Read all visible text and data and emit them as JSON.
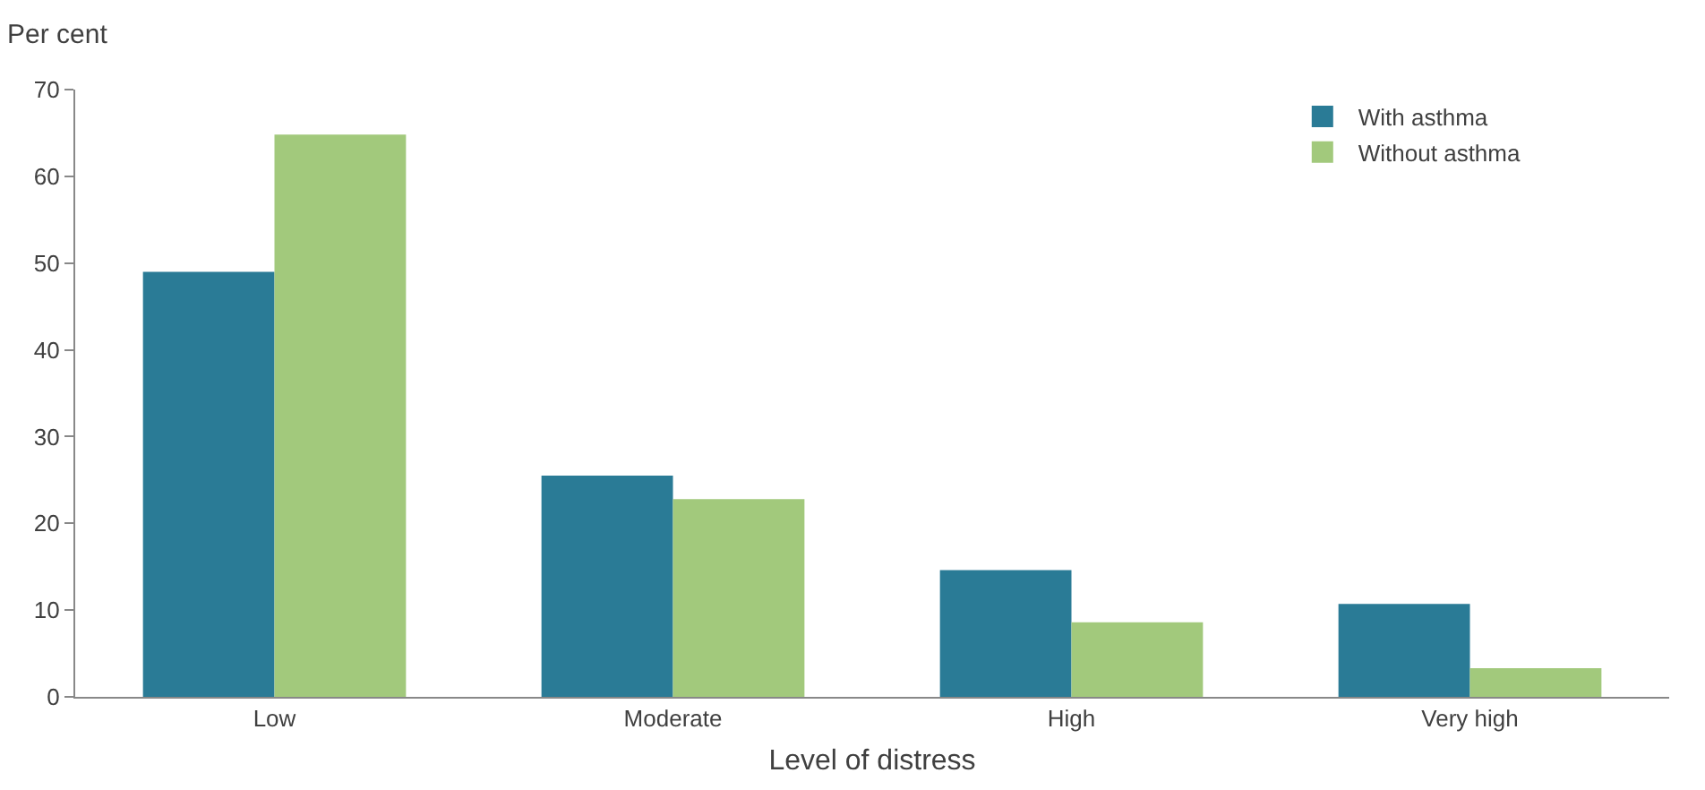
{
  "chart_data": {
    "type": "bar",
    "xlabel": "Level of distress",
    "ylabel": "Per cent",
    "categories": [
      "Low",
      "Moderate",
      "High",
      "Very high"
    ],
    "series": [
      {
        "name": "With asthma",
        "color": "#2a7b96",
        "values": [
          49,
          25.5,
          14.6,
          10.7
        ]
      },
      {
        "name": "Without asthma",
        "color": "#a2c97c",
        "values": [
          64.8,
          22.8,
          8.6,
          3.3
        ]
      }
    ],
    "ylim": [
      0,
      70
    ],
    "yticks": [
      0,
      10,
      20,
      30,
      40,
      50,
      60,
      70
    ],
    "grid": false,
    "legend": "top right"
  }
}
